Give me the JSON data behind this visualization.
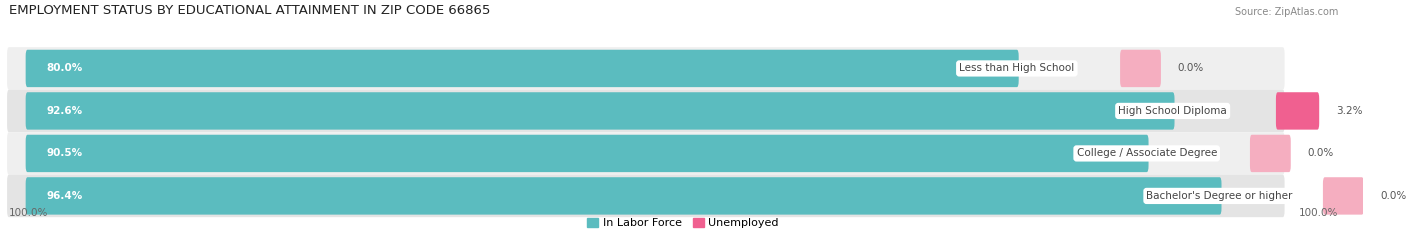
{
  "title": "EMPLOYMENT STATUS BY EDUCATIONAL ATTAINMENT IN ZIP CODE 66865",
  "source": "Source: ZipAtlas.com",
  "categories": [
    "Less than High School",
    "High School Diploma",
    "College / Associate Degree",
    "Bachelor's Degree or higher"
  ],
  "labor_force": [
    80.0,
    92.6,
    90.5,
    96.4
  ],
  "unemployed": [
    0.0,
    3.2,
    0.0,
    0.0
  ],
  "unemployed_display": [
    3.0,
    3.2,
    3.0,
    3.0
  ],
  "labor_force_color": "#5bbcbf",
  "unemployed_color_active": "#f06090",
  "unemployed_color_zero": "#f5aec0",
  "row_bg_colors": [
    "#efefef",
    "#e4e4e4"
  ],
  "legend_labor": "In Labor Force",
  "legend_unemployed": "Unemployed",
  "x_left_label": "100.0%",
  "x_right_label": "100.0%",
  "title_fontsize": 9.5,
  "source_fontsize": 7,
  "bar_label_fontsize": 7.5,
  "category_fontsize": 7.5,
  "legend_fontsize": 8,
  "axis_label_fontsize": 7.5,
  "total_width": 100.0
}
